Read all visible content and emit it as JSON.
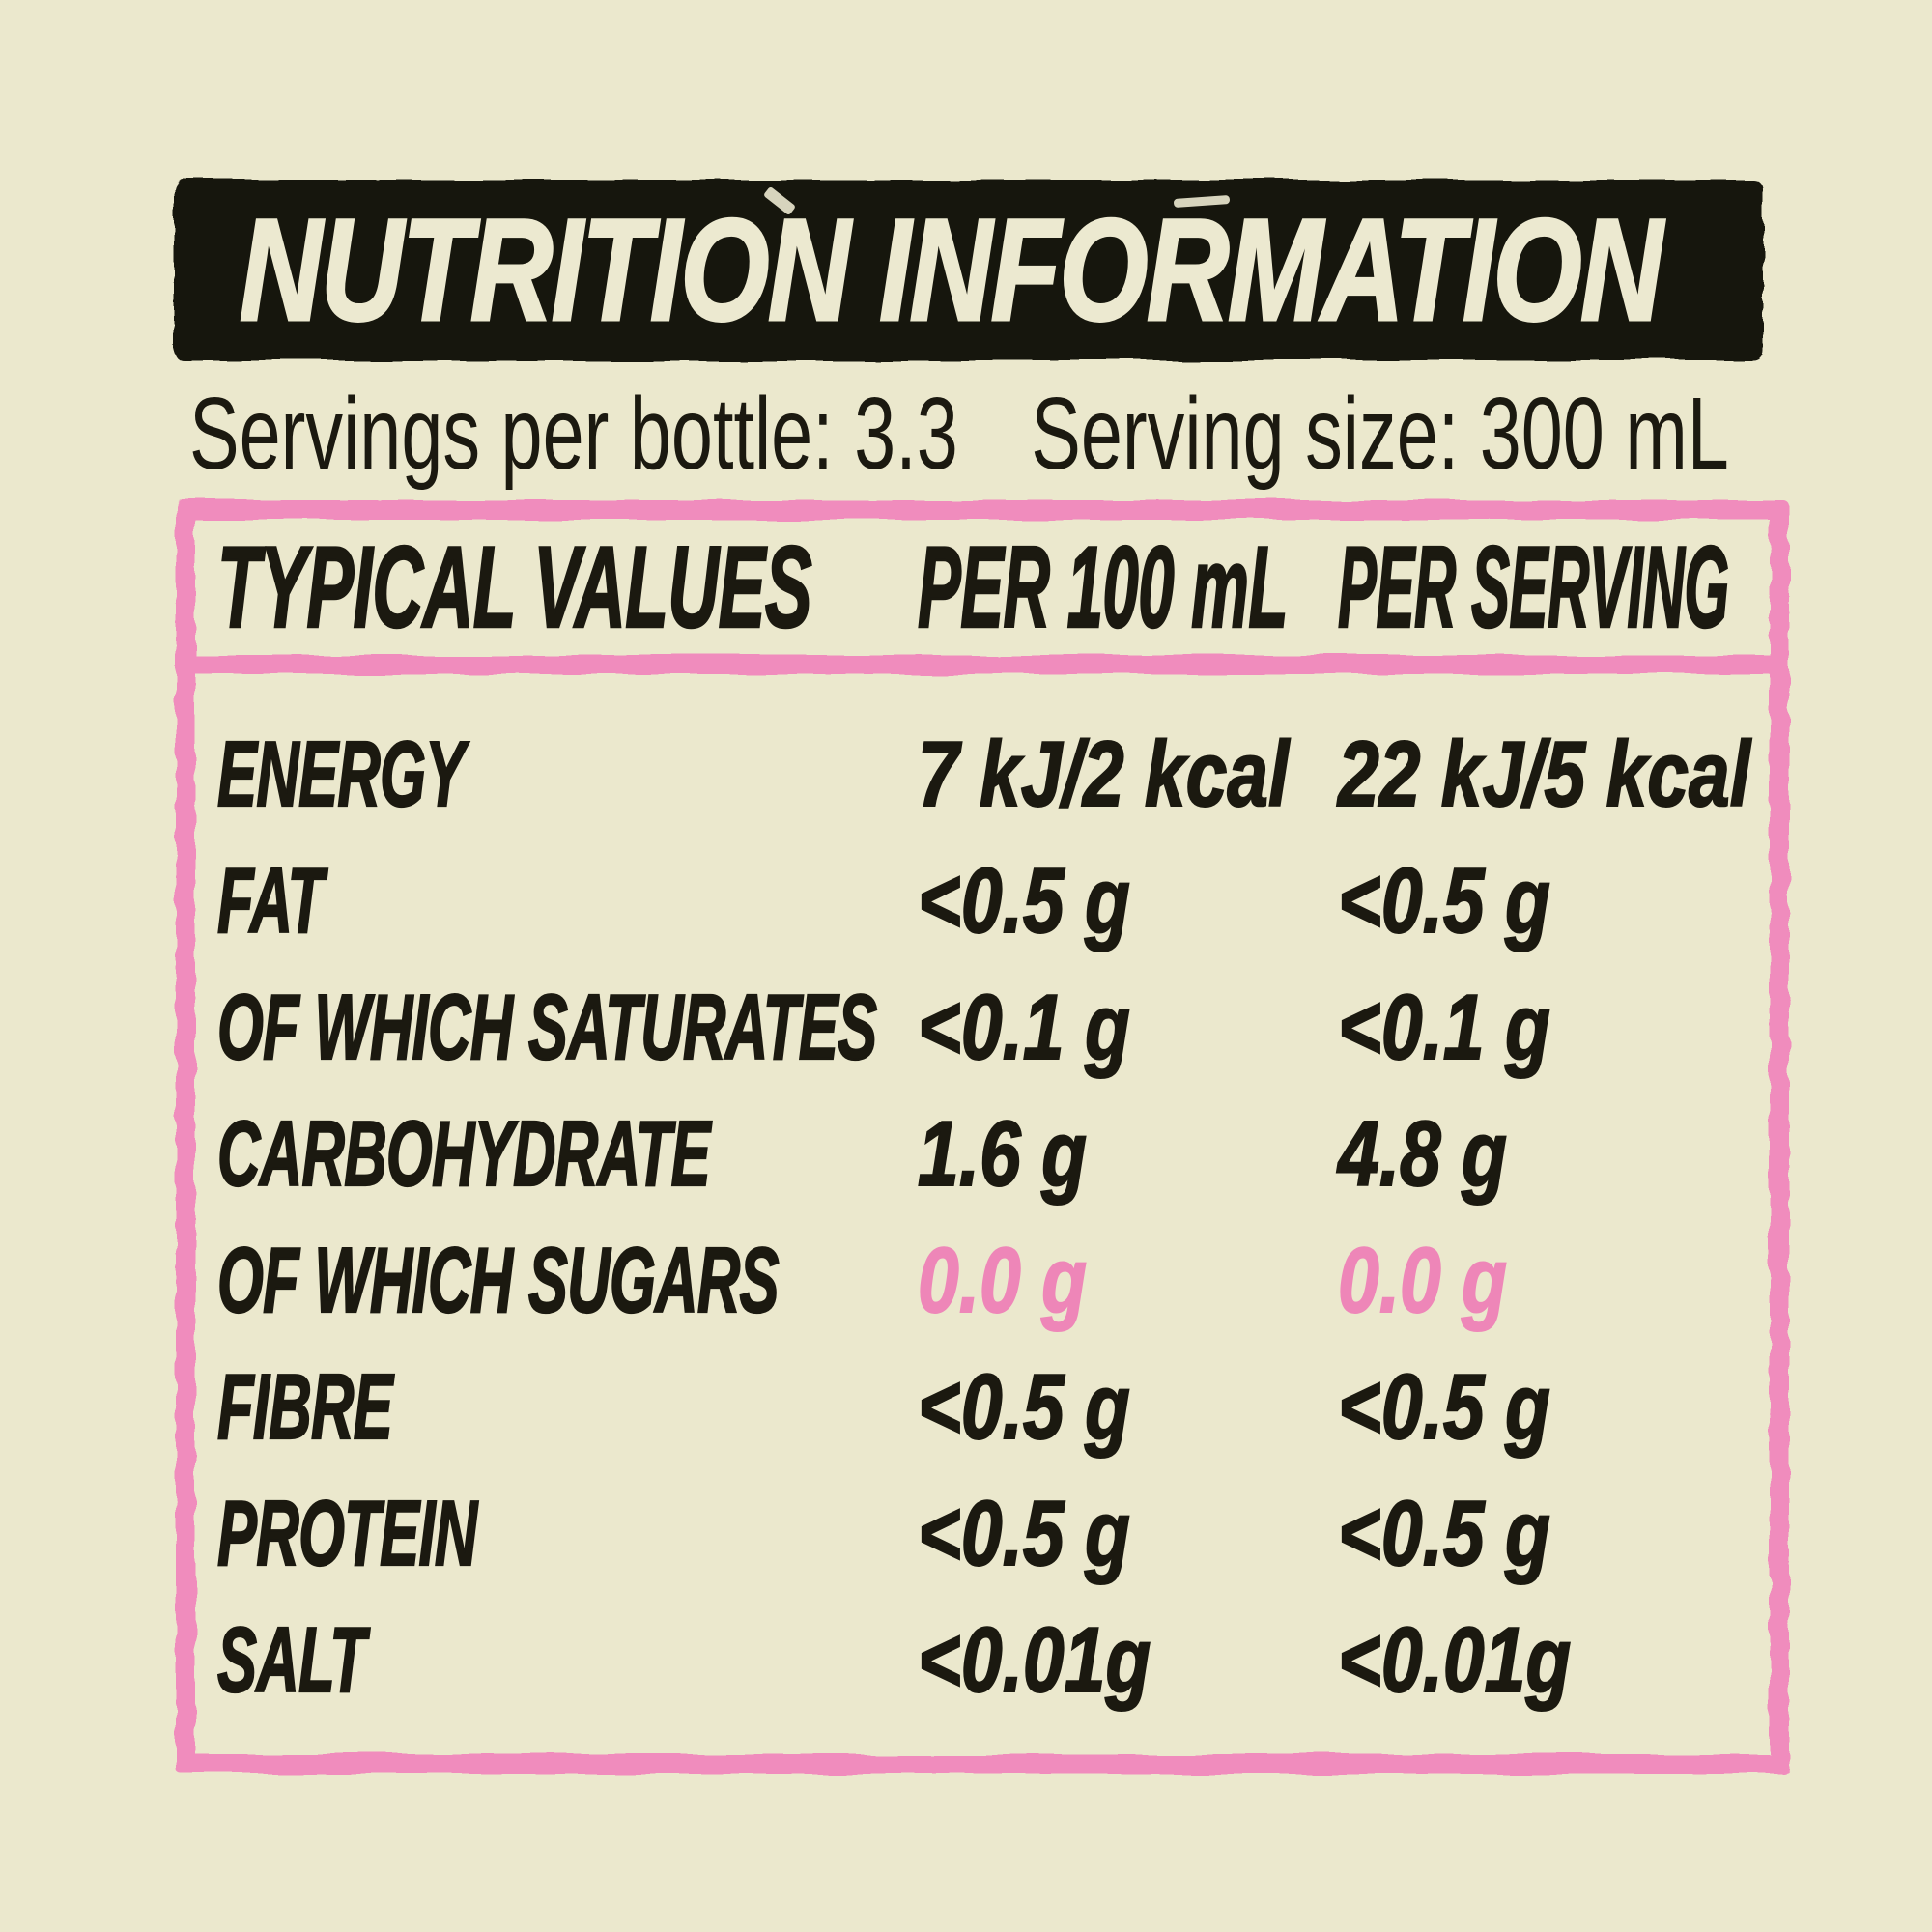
{
  "label": {
    "title": "NUTRITION INFORMATION",
    "servings_per_bottle": "Servings per bottle: 3.3",
    "serving_size": "Serving size: 300 mL",
    "table": {
      "columns": [
        "TYPICAL VALUES",
        "PER 100 mL",
        "PER SERVING"
      ],
      "rows": [
        {
          "label": "ENERGY",
          "per_100ml": "7 kJ/2 kcal",
          "per_serving": "22 kJ/5 kcal",
          "highlight": false
        },
        {
          "label": "FAT",
          "per_100ml": "<0.5 g",
          "per_serving": "<0.5 g",
          "highlight": false
        },
        {
          "label": "OF WHICH SATURATES",
          "per_100ml": "<0.1 g",
          "per_serving": "<0.1 g",
          "highlight": false
        },
        {
          "label": "CARBOHYDRATE",
          "per_100ml": "1.6 g",
          "per_serving": "4.8 g",
          "highlight": false
        },
        {
          "label": "OF WHICH SUGARS",
          "per_100ml": "0.0 g",
          "per_serving": "0.0 g",
          "highlight": true
        },
        {
          "label": "FIBRE",
          "per_100ml": "<0.5 g",
          "per_serving": "<0.5 g",
          "highlight": false
        },
        {
          "label": "PROTEIN",
          "per_100ml": "<0.5 g",
          "per_serving": "<0.5 g",
          "highlight": false
        },
        {
          "label": "SALT",
          "per_100ml": "<0.01g",
          "per_serving": "<0.01g",
          "highlight": false
        }
      ]
    },
    "colors": {
      "background": "#ebe8cd",
      "ink": "#1b1910",
      "band": "#16140d",
      "band_text": "#ece9d0",
      "pink_border": "#f08cbd",
      "pink_text": "#ee86b8"
    }
  }
}
